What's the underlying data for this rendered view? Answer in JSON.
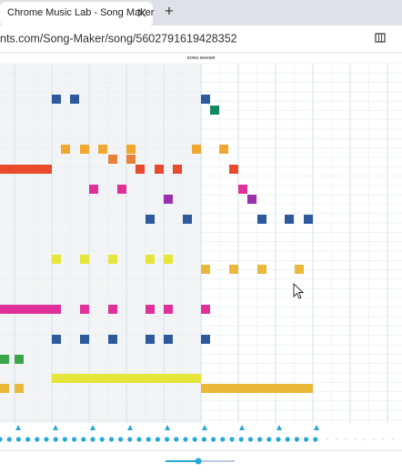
{
  "tab": {
    "title": "Chrome Music Lab - Song Maker",
    "new_tab": "+"
  },
  "address": {
    "url": "nts.com/Song-Maker/song/5602791619428352"
  },
  "app": {
    "title": "SONG MAKER"
  }
}
